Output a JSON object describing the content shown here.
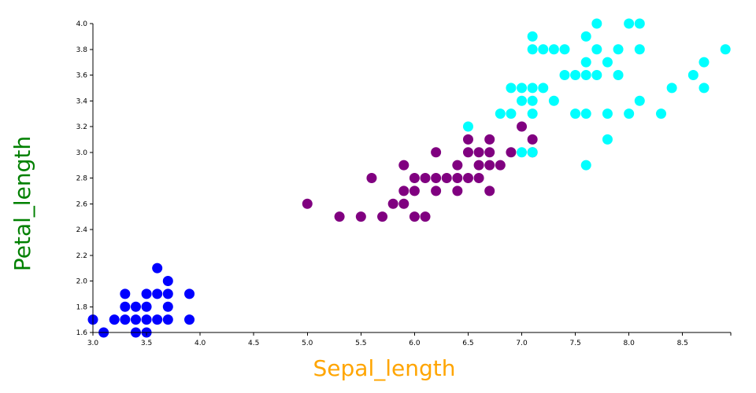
{
  "chart_data": {
    "type": "scatter",
    "xlabel": "Sepal_length",
    "ylabel": "Petal_length",
    "xlim": [
      3.0,
      8.95
    ],
    "ylim": [
      1.6,
      4.0
    ],
    "x_ticks": [
      3.0,
      3.5,
      4.0,
      4.5,
      5.0,
      5.5,
      6.0,
      6.5,
      7.0,
      7.5,
      8.0,
      8.5
    ],
    "y_ticks": [
      1.6,
      1.8,
      2.0,
      2.2,
      2.4,
      2.6,
      2.8,
      3.0,
      3.2,
      3.4,
      3.6,
      3.8,
      4.0
    ],
    "x_tick_labels": [
      "3.0",
      "3.5",
      "4.0",
      "4.5",
      "5.0",
      "5.5",
      "6.0",
      "6.5",
      "7.0",
      "7.5",
      "8.0",
      "8.5"
    ],
    "y_tick_labels": [
      "1.6",
      "1.8",
      "2.0",
      "2.2",
      "2.4",
      "2.6",
      "2.8",
      "3.0",
      "3.2",
      "3.4",
      "3.6",
      "3.8",
      "4.0"
    ],
    "xlabel_color": "#ffa500",
    "ylabel_color": "#008000",
    "grid": false,
    "series": [
      {
        "color": "#0000ff",
        "points": [
          [
            3.0,
            1.7
          ],
          [
            3.1,
            1.6
          ],
          [
            3.2,
            1.7
          ],
          [
            3.3,
            1.7
          ],
          [
            3.3,
            1.8
          ],
          [
            3.3,
            1.9
          ],
          [
            3.4,
            1.6
          ],
          [
            3.4,
            1.7
          ],
          [
            3.4,
            1.8
          ],
          [
            3.5,
            1.6
          ],
          [
            3.5,
            1.7
          ],
          [
            3.5,
            1.8
          ],
          [
            3.5,
            1.9
          ],
          [
            3.6,
            1.7
          ],
          [
            3.6,
            1.9
          ],
          [
            3.6,
            2.1
          ],
          [
            3.7,
            1.7
          ],
          [
            3.7,
            1.8
          ],
          [
            3.7,
            1.9
          ],
          [
            3.7,
            2.0
          ],
          [
            3.9,
            1.7
          ],
          [
            3.9,
            1.9
          ]
        ]
      },
      {
        "color": "#800080",
        "points": [
          [
            5.0,
            2.6
          ],
          [
            5.3,
            2.5
          ],
          [
            5.5,
            2.5
          ],
          [
            5.6,
            2.8
          ],
          [
            5.7,
            2.5
          ],
          [
            5.8,
            2.6
          ],
          [
            5.9,
            2.6
          ],
          [
            5.9,
            2.7
          ],
          [
            5.9,
            2.9
          ],
          [
            6.0,
            2.5
          ],
          [
            6.0,
            2.7
          ],
          [
            6.0,
            2.8
          ],
          [
            6.1,
            2.5
          ],
          [
            6.1,
            2.8
          ],
          [
            6.2,
            2.7
          ],
          [
            6.2,
            2.8
          ],
          [
            6.2,
            3.0
          ],
          [
            6.3,
            2.8
          ],
          [
            6.4,
            2.7
          ],
          [
            6.4,
            2.8
          ],
          [
            6.4,
            2.9
          ],
          [
            6.5,
            2.8
          ],
          [
            6.5,
            3.0
          ],
          [
            6.5,
            3.1
          ],
          [
            6.6,
            2.8
          ],
          [
            6.6,
            2.9
          ],
          [
            6.6,
            3.0
          ],
          [
            6.7,
            2.7
          ],
          [
            6.7,
            2.9
          ],
          [
            6.7,
            3.0
          ],
          [
            6.7,
            3.1
          ],
          [
            6.8,
            2.9
          ],
          [
            6.9,
            3.0
          ],
          [
            7.0,
            3.2
          ],
          [
            7.1,
            3.0
          ],
          [
            7.1,
            3.1
          ]
        ]
      },
      {
        "color": "#00ffff",
        "points": [
          [
            6.5,
            3.2
          ],
          [
            6.8,
            3.3
          ],
          [
            6.9,
            3.3
          ],
          [
            6.9,
            3.5
          ],
          [
            7.0,
            3.0
          ],
          [
            7.0,
            3.4
          ],
          [
            7.0,
            3.5
          ],
          [
            7.1,
            3.0
          ],
          [
            7.1,
            3.3
          ],
          [
            7.1,
            3.4
          ],
          [
            7.1,
            3.5
          ],
          [
            7.1,
            3.8
          ],
          [
            7.1,
            3.9
          ],
          [
            7.2,
            3.5
          ],
          [
            7.2,
            3.8
          ],
          [
            7.3,
            3.4
          ],
          [
            7.3,
            3.8
          ],
          [
            7.4,
            3.6
          ],
          [
            7.4,
            3.8
          ],
          [
            7.5,
            3.3
          ],
          [
            7.5,
            3.6
          ],
          [
            7.6,
            2.9
          ],
          [
            7.6,
            3.3
          ],
          [
            7.6,
            3.6
          ],
          [
            7.6,
            3.7
          ],
          [
            7.6,
            3.9
          ],
          [
            7.7,
            3.6
          ],
          [
            7.7,
            3.8
          ],
          [
            7.7,
            4.0
          ],
          [
            7.8,
            3.1
          ],
          [
            7.8,
            3.3
          ],
          [
            7.8,
            3.7
          ],
          [
            7.9,
            3.6
          ],
          [
            7.9,
            3.8
          ],
          [
            8.0,
            3.3
          ],
          [
            8.0,
            4.0
          ],
          [
            8.1,
            3.4
          ],
          [
            8.1,
            3.8
          ],
          [
            8.1,
            4.0
          ],
          [
            8.3,
            3.3
          ],
          [
            8.4,
            3.5
          ],
          [
            8.6,
            3.6
          ],
          [
            8.7,
            3.5
          ],
          [
            8.7,
            3.7
          ],
          [
            8.9,
            3.8
          ]
        ]
      }
    ]
  }
}
